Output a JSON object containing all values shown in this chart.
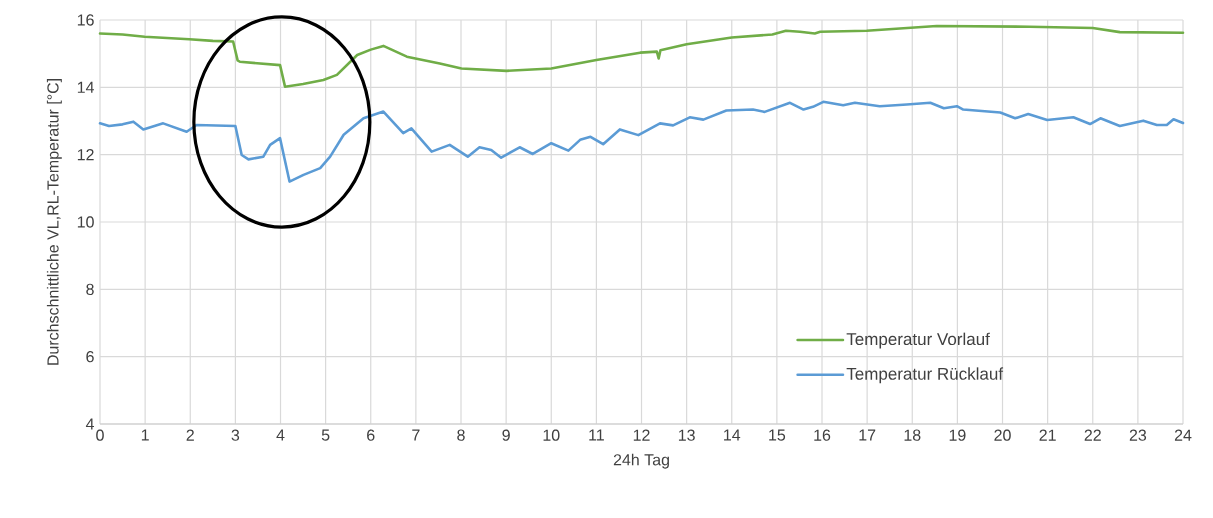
{
  "chart_data": {
    "type": "line",
    "xlabel": "24h Tag",
    "ylabel": "Durchschnittliche VL,RL-Temperatur [°C]",
    "xlim": [
      0,
      24
    ],
    "ylim": [
      4,
      16
    ],
    "xticks": [
      0,
      1,
      2,
      3,
      4,
      5,
      6,
      7,
      8,
      9,
      10,
      11,
      12,
      13,
      14,
      15,
      16,
      17,
      18,
      19,
      20,
      21,
      22,
      23,
      24
    ],
    "yticks": [
      4,
      6,
      8,
      10,
      12,
      14,
      16
    ],
    "grid": true,
    "legend": "bottom right",
    "series": [
      {
        "name": "Temperatur Vorlauf",
        "color": "#70ad47",
        "x": [
          0,
          0.5,
          0.99,
          1.98,
          2.5,
          2.95,
          3.05,
          3.1,
          3.99,
          4.1,
          4.5,
          4.95,
          5.25,
          5.7,
          6.0,
          6.28,
          6.8,
          7.53,
          8.01,
          9.01,
          10.0,
          11.0,
          11.97,
          12.34,
          12.38,
          12.42,
          13.0,
          14.0,
          14.9,
          15.2,
          15.51,
          15.84,
          15.96,
          16.99,
          18.54,
          20.6,
          22.0,
          22.6,
          24.0
        ],
        "values": [
          15.6,
          15.57,
          15.5,
          15.43,
          15.38,
          15.36,
          14.8,
          14.76,
          14.66,
          14.02,
          14.1,
          14.22,
          14.37,
          14.96,
          15.12,
          15.23,
          14.91,
          14.71,
          14.56,
          14.49,
          14.56,
          14.81,
          15.03,
          15.06,
          14.86,
          15.1,
          15.28,
          15.48,
          15.57,
          15.68,
          15.65,
          15.6,
          15.65,
          15.68,
          15.82,
          15.8,
          15.76,
          15.64,
          15.62
        ]
      },
      {
        "name": "Temperatur Rücklauf",
        "color": "#5b9bd5",
        "x": [
          0,
          0.2,
          0.5,
          0.74,
          0.96,
          1.4,
          1.92,
          2.14,
          3.0,
          3.14,
          3.29,
          3.62,
          3.77,
          3.99,
          4.2,
          4.51,
          4.88,
          5.1,
          5.4,
          5.84,
          6.28,
          6.72,
          6.9,
          7.35,
          7.75,
          8.15,
          8.41,
          8.67,
          8.89,
          9.3,
          9.59,
          10.0,
          10.38,
          10.64,
          10.87,
          11.15,
          11.52,
          11.93,
          12.41,
          12.7,
          13.07,
          13.37,
          13.88,
          14.47,
          14.73,
          15.29,
          15.59,
          15.8,
          16.03,
          16.47,
          16.73,
          17.28,
          17.88,
          18.4,
          18.7,
          18.99,
          19.13,
          19.95,
          20.28,
          20.57,
          20.99,
          21.57,
          21.94,
          22.17,
          22.6,
          23.12,
          23.42,
          23.64,
          23.79,
          24.0
        ],
        "values": [
          12.93,
          12.85,
          12.9,
          12.98,
          12.75,
          12.93,
          12.68,
          12.88,
          12.85,
          11.99,
          11.86,
          11.94,
          12.29,
          12.49,
          11.2,
          11.4,
          11.6,
          11.94,
          12.59,
          13.08,
          13.28,
          12.64,
          12.78,
          12.09,
          12.29,
          11.94,
          12.22,
          12.14,
          11.91,
          12.22,
          12.02,
          12.34,
          12.12,
          12.44,
          12.53,
          12.31,
          12.75,
          12.58,
          12.93,
          12.87,
          13.11,
          13.04,
          13.31,
          13.34,
          13.27,
          13.54,
          13.34,
          13.42,
          13.57,
          13.47,
          13.54,
          13.44,
          13.49,
          13.54,
          13.38,
          13.44,
          13.34,
          13.25,
          13.08,
          13.21,
          13.03,
          13.11,
          12.91,
          13.08,
          12.85,
          13.01,
          12.88,
          12.88,
          13.05,
          12.94
        ]
      }
    ]
  }
}
